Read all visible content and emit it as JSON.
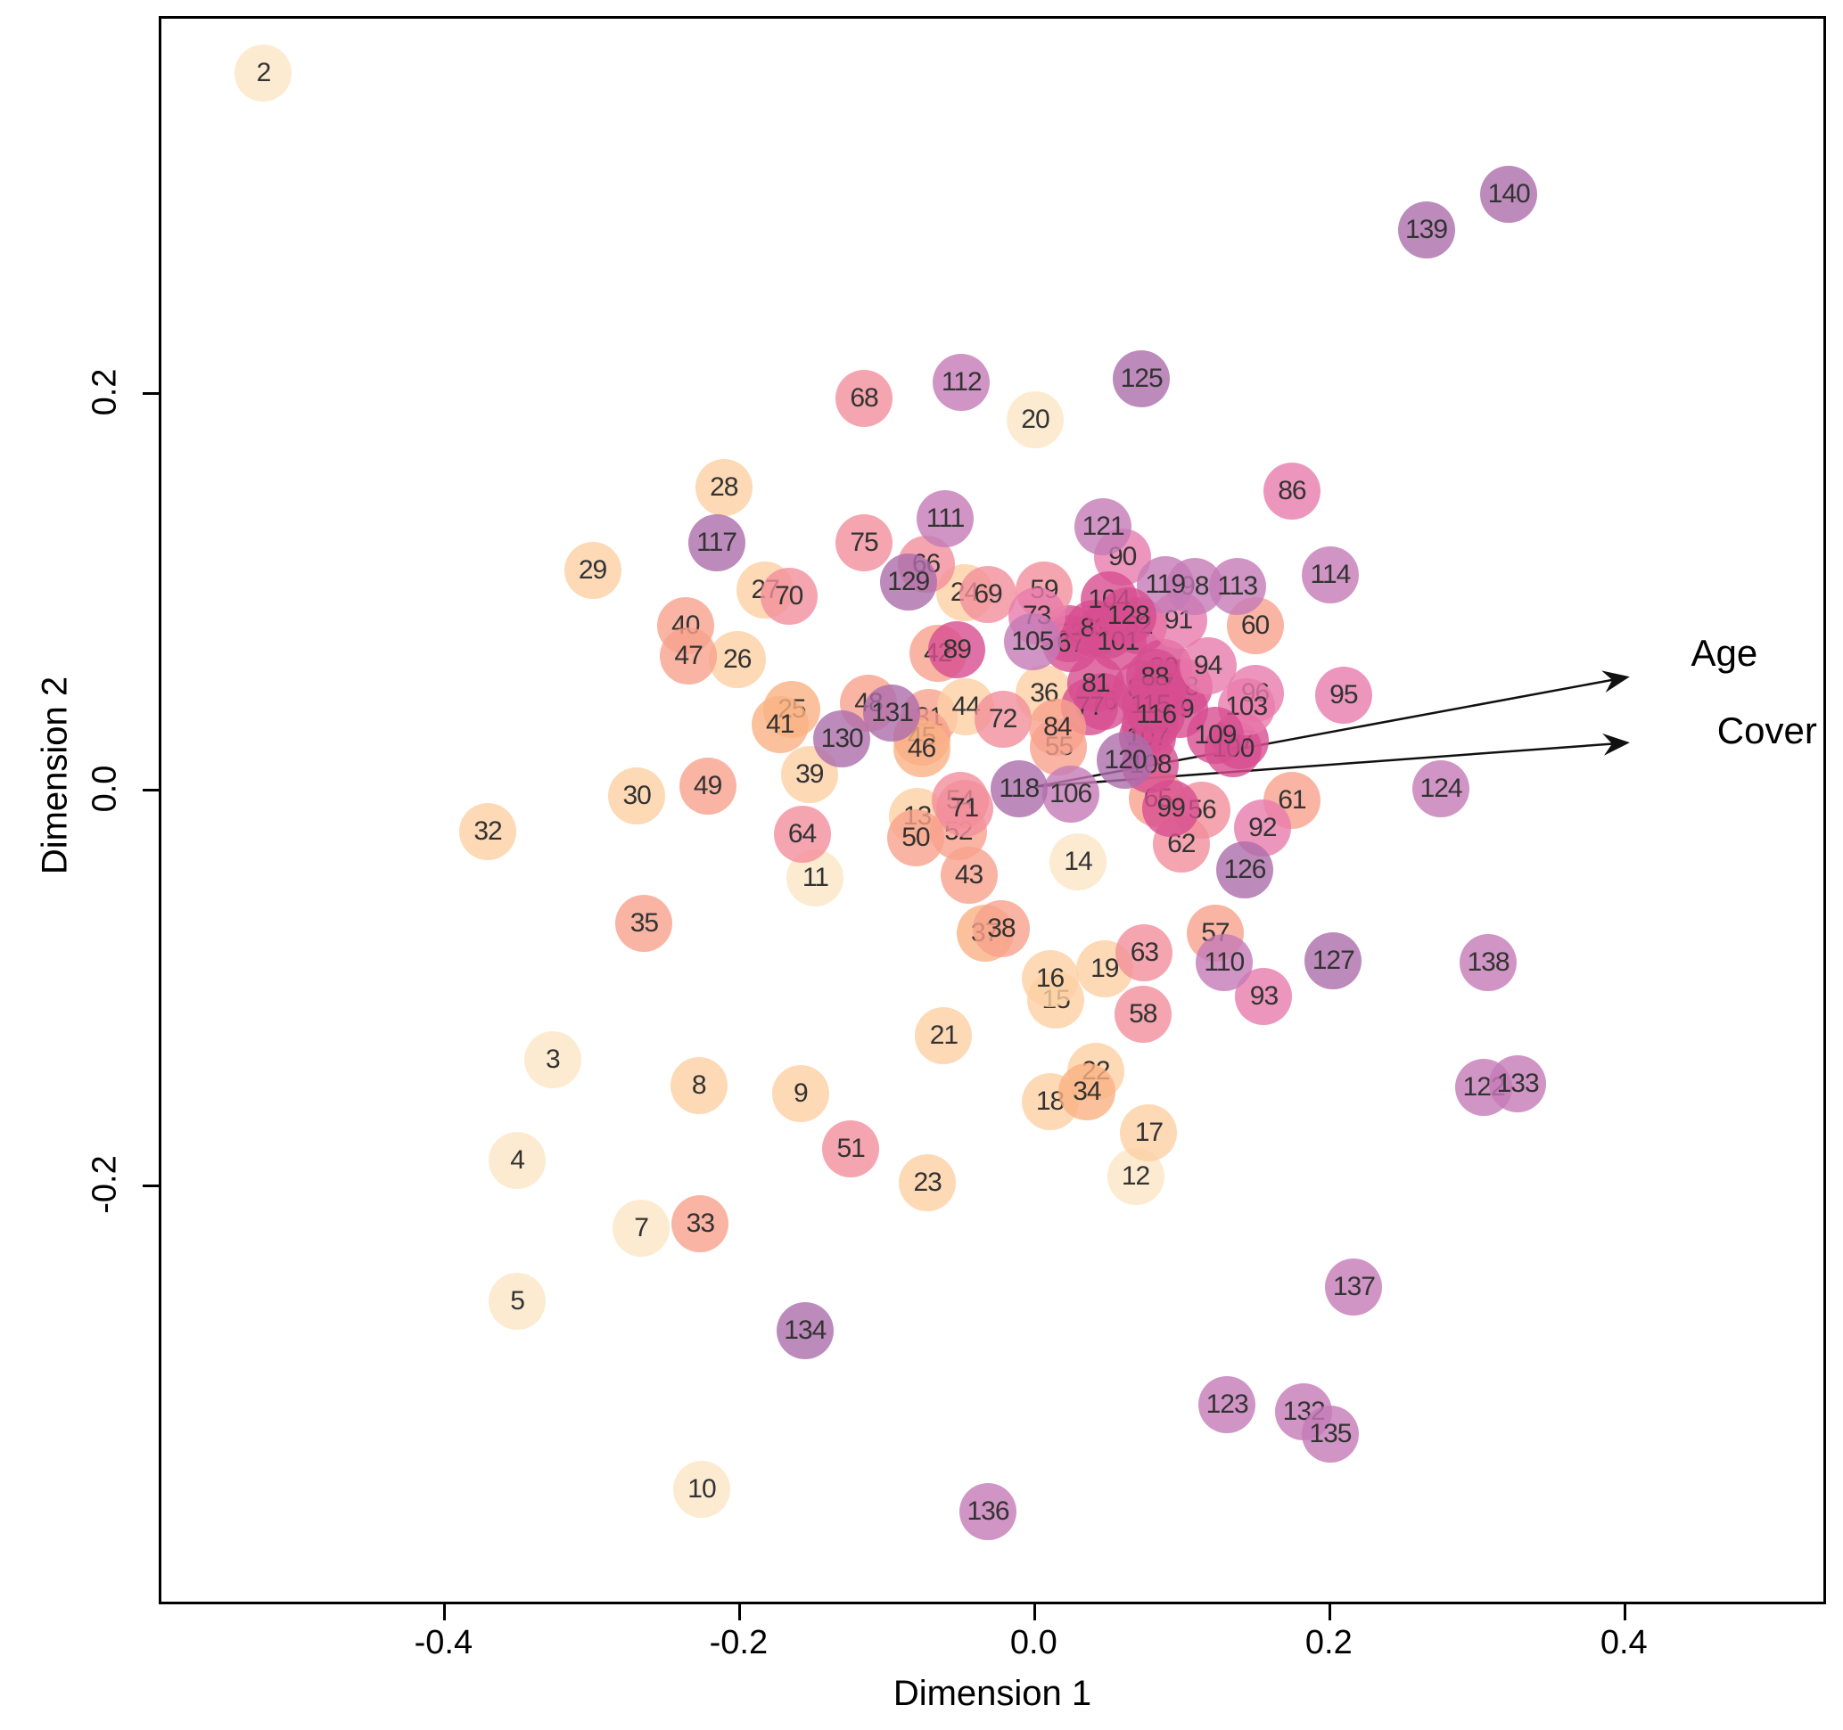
{
  "axes": {
    "xlabel": "Dimension 1",
    "ylabel": "Dimension 2",
    "x_ticks": [
      {
        "v": -0.4,
        "t": "-0.4"
      },
      {
        "v": -0.2,
        "t": "-0.2"
      },
      {
        "v": 0.0,
        "t": "0.0"
      },
      {
        "v": 0.2,
        "t": "0.2"
      },
      {
        "v": 0.4,
        "t": "0.4"
      }
    ],
    "y_ticks": [
      {
        "v": 0.2,
        "t": "0.2"
      },
      {
        "v": 0.0,
        "t": "0.0"
      },
      {
        "v": -0.2,
        "t": "-0.2"
      }
    ],
    "xlim": [
      -0.593,
      0.537
    ],
    "ylim": [
      -0.412,
      0.39
    ]
  },
  "colors": {
    "c1": "#fbe6c5",
    "c2": "#fccfa4",
    "c3": "#fab183",
    "c4": "#f8a18c",
    "c5": "#f28e9b",
    "c6": "#e97cad",
    "c7": "#d74e90",
    "c8": "#c47ab7",
    "c9": "#ac6dab",
    "point_label": "#333333",
    "arrow": "#111111"
  },
  "chart_data": {
    "type": "scatter",
    "title": "",
    "xlabel": "Dimension 1",
    "ylabel": "Dimension 2",
    "grid": false,
    "points": [
      {
        "l": "2",
        "x": -0.522,
        "y": 0.361,
        "c": "c1"
      },
      {
        "l": "3",
        "x": -0.326,
        "y": -0.137,
        "c": "c1"
      },
      {
        "l": "4",
        "x": -0.35,
        "y": -0.188,
        "c": "c1"
      },
      {
        "l": "5",
        "x": -0.35,
        "y": -0.259,
        "c": "c1"
      },
      {
        "l": "7",
        "x": -0.266,
        "y": -0.222,
        "c": "c1"
      },
      {
        "l": "8",
        "x": -0.227,
        "y": -0.15,
        "c": "c2"
      },
      {
        "l": "9",
        "x": -0.158,
        "y": -0.154,
        "c": "c2"
      },
      {
        "l": "10",
        "x": -0.225,
        "y": -0.354,
        "c": "c1"
      },
      {
        "l": "11",
        "x": -0.148,
        "y": -0.045,
        "c": "c1"
      },
      {
        "l": "12",
        "x": 0.069,
        "y": -0.196,
        "c": "c1"
      },
      {
        "l": "13",
        "x": -0.079,
        "y": -0.014,
        "c": "c2"
      },
      {
        "l": "14",
        "x": 0.03,
        "y": -0.037,
        "c": "c1"
      },
      {
        "l": "15",
        "x": 0.015,
        "y": -0.107,
        "c": "c2"
      },
      {
        "l": "16",
        "x": 0.011,
        "y": -0.096,
        "c": "c2"
      },
      {
        "l": "17",
        "x": 0.078,
        "y": -0.174,
        "c": "c2"
      },
      {
        "l": "18",
        "x": 0.011,
        "y": -0.158,
        "c": "c2"
      },
      {
        "l": "19",
        "x": 0.048,
        "y": -0.091,
        "c": "c2"
      },
      {
        "l": "20",
        "x": 0.001,
        "y": 0.186,
        "c": "c1"
      },
      {
        "l": "21",
        "x": -0.061,
        "y": -0.125,
        "c": "c2"
      },
      {
        "l": "22",
        "x": 0.042,
        "y": -0.143,
        "c": "c2"
      },
      {
        "l": "23",
        "x": -0.072,
        "y": -0.199,
        "c": "c2"
      },
      {
        "l": "24",
        "x": -0.047,
        "y": 0.099,
        "c": "c2"
      },
      {
        "l": "25",
        "x": -0.164,
        "y": 0.04,
        "c": "c3"
      },
      {
        "l": "26",
        "x": -0.201,
        "y": 0.065,
        "c": "c2"
      },
      {
        "l": "27",
        "x": -0.182,
        "y": 0.1,
        "c": "c2"
      },
      {
        "l": "28",
        "x": -0.21,
        "y": 0.152,
        "c": "c2"
      },
      {
        "l": "29",
        "x": -0.299,
        "y": 0.11,
        "c": "c2"
      },
      {
        "l": "30",
        "x": -0.269,
        "y": -0.004,
        "c": "c2"
      },
      {
        "l": "31",
        "x": -0.071,
        "y": 0.036,
        "c": "c4"
      },
      {
        "l": "32",
        "x": -0.37,
        "y": -0.022,
        "c": "c2"
      },
      {
        "l": "33",
        "x": -0.226,
        "y": -0.22,
        "c": "c4"
      },
      {
        "l": "34",
        "x": 0.036,
        "y": -0.153,
        "c": "c3"
      },
      {
        "l": "35",
        "x": -0.264,
        "y": -0.068,
        "c": "c4"
      },
      {
        "l": "36",
        "x": 0.007,
        "y": 0.048,
        "c": "c2"
      },
      {
        "l": "37",
        "x": -0.033,
        "y": -0.073,
        "c": "c3"
      },
      {
        "l": "38",
        "x": -0.022,
        "y": -0.071,
        "c": "c4"
      },
      {
        "l": "39",
        "x": -0.152,
        "y": 0.007,
        "c": "c2"
      },
      {
        "l": "40",
        "x": -0.236,
        "y": 0.082,
        "c": "c4"
      },
      {
        "l": "41",
        "x": -0.172,
        "y": 0.032,
        "c": "c3"
      },
      {
        "l": "42",
        "x": -0.065,
        "y": 0.068,
        "c": "c4"
      },
      {
        "l": "43",
        "x": -0.044,
        "y": -0.044,
        "c": "c4"
      },
      {
        "l": "44",
        "x": -0.046,
        "y": 0.041,
        "c": "c2"
      },
      {
        "l": "45",
        "x": -0.076,
        "y": 0.026,
        "c": "c4"
      },
      {
        "l": "46",
        "x": -0.076,
        "y": 0.02,
        "c": "c3"
      },
      {
        "l": "47",
        "x": -0.234,
        "y": 0.067,
        "c": "c4"
      },
      {
        "l": "48",
        "x": -0.112,
        "y": 0.043,
        "c": "c4"
      },
      {
        "l": "49",
        "x": -0.221,
        "y": 0.001,
        "c": "c4"
      },
      {
        "l": "50",
        "x": -0.08,
        "y": -0.025,
        "c": "c4"
      },
      {
        "l": "51",
        "x": -0.124,
        "y": -0.182,
        "c": "c5"
      },
      {
        "l": "52",
        "x": -0.051,
        "y": -0.022,
        "c": "c4"
      },
      {
        "l": "53",
        "x": 0.024,
        "y": 0.078,
        "c": "c7"
      },
      {
        "l": "54",
        "x": -0.05,
        "y": -0.006,
        "c": "c5"
      },
      {
        "l": "55",
        "x": 0.017,
        "y": 0.021,
        "c": "c4"
      },
      {
        "l": "56",
        "x": 0.114,
        "y": -0.011,
        "c": "c5"
      },
      {
        "l": "57",
        "x": 0.123,
        "y": -0.073,
        "c": "c4"
      },
      {
        "l": "58",
        "x": 0.074,
        "y": -0.114,
        "c": "c5"
      },
      {
        "l": "59",
        "x": 0.007,
        "y": 0.1,
        "c": "c5"
      },
      {
        "l": "60",
        "x": 0.15,
        "y": 0.082,
        "c": "c4"
      },
      {
        "l": "61",
        "x": 0.175,
        "y": -0.006,
        "c": "c4"
      },
      {
        "l": "62",
        "x": 0.1,
        "y": -0.028,
        "c": "c5"
      },
      {
        "l": "63",
        "x": 0.075,
        "y": -0.083,
        "c": "c5"
      },
      {
        "l": "64",
        "x": -0.157,
        "y": -0.023,
        "c": "c5"
      },
      {
        "l": "65",
        "x": 0.084,
        "y": -0.005,
        "c": "c4"
      },
      {
        "l": "66",
        "x": -0.073,
        "y": 0.113,
        "c": "c5"
      },
      {
        "l": "67",
        "x": 0.025,
        "y": 0.073,
        "c": "c7"
      },
      {
        "l": "68",
        "x": -0.115,
        "y": 0.197,
        "c": "c5"
      },
      {
        "l": "69",
        "x": -0.031,
        "y": 0.098,
        "c": "c5"
      },
      {
        "l": "70",
        "x": -0.166,
        "y": 0.097,
        "c": "c5"
      },
      {
        "l": "71",
        "x": -0.047,
        "y": -0.01,
        "c": "c5"
      },
      {
        "l": "72",
        "x": -0.021,
        "y": 0.035,
        "c": "c5"
      },
      {
        "l": "73",
        "x": 0.002,
        "y": 0.087,
        "c": "c6"
      },
      {
        "l": "74",
        "x": 0.05,
        "y": 0.08,
        "c": "c7"
      },
      {
        "l": "75",
        "x": -0.115,
        "y": 0.124,
        "c": "c5"
      },
      {
        "l": "76",
        "x": 0.047,
        "y": 0.044,
        "c": "c7"
      },
      {
        "l": "77",
        "x": 0.038,
        "y": 0.041,
        "c": "c7"
      },
      {
        "l": "78",
        "x": 0.102,
        "y": 0.051,
        "c": "c7"
      },
      {
        "l": "79",
        "x": 0.099,
        "y": 0.04,
        "c": "c7"
      },
      {
        "l": "80",
        "x": 0.088,
        "y": 0.061,
        "c": "c7"
      },
      {
        "l": "81",
        "x": 0.042,
        "y": 0.053,
        "c": "c7"
      },
      {
        "l": "82",
        "x": 0.071,
        "y": 0.082,
        "c": "c7"
      },
      {
        "l": "83",
        "x": 0.041,
        "y": 0.081,
        "c": "c7"
      },
      {
        "l": "84",
        "x": 0.016,
        "y": 0.031,
        "c": "c4"
      },
      {
        "l": "85",
        "x": 0.073,
        "y": 0.05,
        "c": "c7"
      },
      {
        "l": "86",
        "x": 0.175,
        "y": 0.15,
        "c": "c6"
      },
      {
        "l": "87",
        "x": 0.085,
        "y": 0.051,
        "c": "c7"
      },
      {
        "l": "88",
        "x": 0.082,
        "y": 0.056,
        "c": "c7"
      },
      {
        "l": "89",
        "x": -0.052,
        "y": 0.07,
        "c": "c7"
      },
      {
        "l": "90",
        "x": 0.06,
        "y": 0.117,
        "c": "c6"
      },
      {
        "l": "91",
        "x": 0.098,
        "y": 0.085,
        "c": "c6"
      },
      {
        "l": "92",
        "x": 0.155,
        "y": -0.02,
        "c": "c6"
      },
      {
        "l": "93",
        "x": 0.156,
        "y": -0.105,
        "c": "c6"
      },
      {
        "l": "94",
        "x": 0.118,
        "y": 0.062,
        "c": "c6"
      },
      {
        "l": "95",
        "x": 0.21,
        "y": 0.047,
        "c": "c6"
      },
      {
        "l": "96",
        "x": 0.15,
        "y": 0.048,
        "c": "c6"
      },
      {
        "l": "97",
        "x": 0.14,
        "y": 0.024,
        "c": "c7"
      },
      {
        "l": "98",
        "x": 0.109,
        "y": 0.102,
        "c": "c8"
      },
      {
        "l": "99",
        "x": 0.093,
        "y": -0.01,
        "c": "c7"
      },
      {
        "l": "100",
        "x": 0.135,
        "y": 0.02,
        "c": "c7"
      },
      {
        "l": "101",
        "x": 0.057,
        "y": 0.074,
        "c": "c7"
      },
      {
        "l": "102",
        "x": 0.079,
        "y": 0.032,
        "c": "c7"
      },
      {
        "l": "103",
        "x": 0.144,
        "y": 0.041,
        "c": "c6"
      },
      {
        "l": "104",
        "x": 0.051,
        "y": 0.095,
        "c": "c7"
      },
      {
        "l": "105",
        "x": -0.001,
        "y": 0.074,
        "c": "c8"
      },
      {
        "l": "106",
        "x": 0.025,
        "y": -0.003,
        "c": "c8"
      },
      {
        "l": "107",
        "x": 0.077,
        "y": 0.026,
        "c": "c7"
      },
      {
        "l": "108",
        "x": 0.079,
        "y": 0.012,
        "c": "c7"
      },
      {
        "l": "109",
        "x": 0.123,
        "y": 0.027,
        "c": "c7"
      },
      {
        "l": "110",
        "x": 0.129,
        "y": -0.088,
        "c": "c8"
      },
      {
        "l": "111",
        "x": -0.06,
        "y": 0.136,
        "c": "c8"
      },
      {
        "l": "112",
        "x": -0.049,
        "y": 0.205,
        "c": "c8"
      },
      {
        "l": "113",
        "x": 0.138,
        "y": 0.102,
        "c": "c8"
      },
      {
        "l": "114",
        "x": 0.201,
        "y": 0.108,
        "c": "c8"
      },
      {
        "l": "115",
        "x": 0.079,
        "y": 0.042,
        "c": "c7"
      },
      {
        "l": "116",
        "x": 0.083,
        "y": 0.037,
        "c": "c7"
      },
      {
        "l": "117",
        "x": -0.215,
        "y": 0.124,
        "c": "c9"
      },
      {
        "l": "118",
        "x": -0.01,
        "y": 0.0,
        "c": "c9"
      },
      {
        "l": "119",
        "x": 0.089,
        "y": 0.103,
        "c": "c8"
      },
      {
        "l": "120",
        "x": 0.062,
        "y": 0.014,
        "c": "c9"
      },
      {
        "l": "121",
        "x": 0.047,
        "y": 0.132,
        "c": "c8"
      },
      {
        "l": "122",
        "x": 0.305,
        "y": -0.151,
        "c": "c8"
      },
      {
        "l": "123",
        "x": 0.131,
        "y": -0.311,
        "c": "c8"
      },
      {
        "l": "124",
        "x": 0.276,
        "y": 0.0,
        "c": "c8"
      },
      {
        "l": "125",
        "x": 0.073,
        "y": 0.207,
        "c": "c9"
      },
      {
        "l": "126",
        "x": 0.143,
        "y": -0.041,
        "c": "c9"
      },
      {
        "l": "127",
        "x": 0.203,
        "y": -0.087,
        "c": "c9"
      },
      {
        "l": "128",
        "x": 0.064,
        "y": 0.087,
        "c": "c7"
      },
      {
        "l": "129",
        "x": -0.085,
        "y": 0.104,
        "c": "c9"
      },
      {
        "l": "130",
        "x": -0.13,
        "y": 0.025,
        "c": "c9"
      },
      {
        "l": "131",
        "x": -0.096,
        "y": 0.038,
        "c": "c9"
      },
      {
        "l": "132",
        "x": 0.183,
        "y": -0.315,
        "c": "c8"
      },
      {
        "l": "133",
        "x": 0.328,
        "y": -0.149,
        "c": "c8"
      },
      {
        "l": "134",
        "x": -0.155,
        "y": -0.274,
        "c": "c9"
      },
      {
        "l": "135",
        "x": 0.201,
        "y": -0.326,
        "c": "c8"
      },
      {
        "l": "136",
        "x": -0.031,
        "y": -0.365,
        "c": "c8"
      },
      {
        "l": "137",
        "x": 0.217,
        "y": -0.252,
        "c": "c8"
      },
      {
        "l": "138",
        "x": 0.308,
        "y": -0.088,
        "c": "c8"
      },
      {
        "l": "139",
        "x": 0.266,
        "y": 0.282,
        "c": "c9"
      },
      {
        "l": "140",
        "x": 0.322,
        "y": 0.3,
        "c": "c9"
      }
    ],
    "arrows": [
      {
        "label": "Age",
        "x1": 0.002,
        "y1": 0.001,
        "x2": 0.401,
        "y2": 0.056,
        "label_x": 0.468,
        "label_y": 0.068
      },
      {
        "label": "Cover",
        "x1": 0.002,
        "y1": 0.001,
        "x2": 0.401,
        "y2": 0.023,
        "label_x": 0.497,
        "label_y": 0.029
      }
    ],
    "legend": null
  }
}
